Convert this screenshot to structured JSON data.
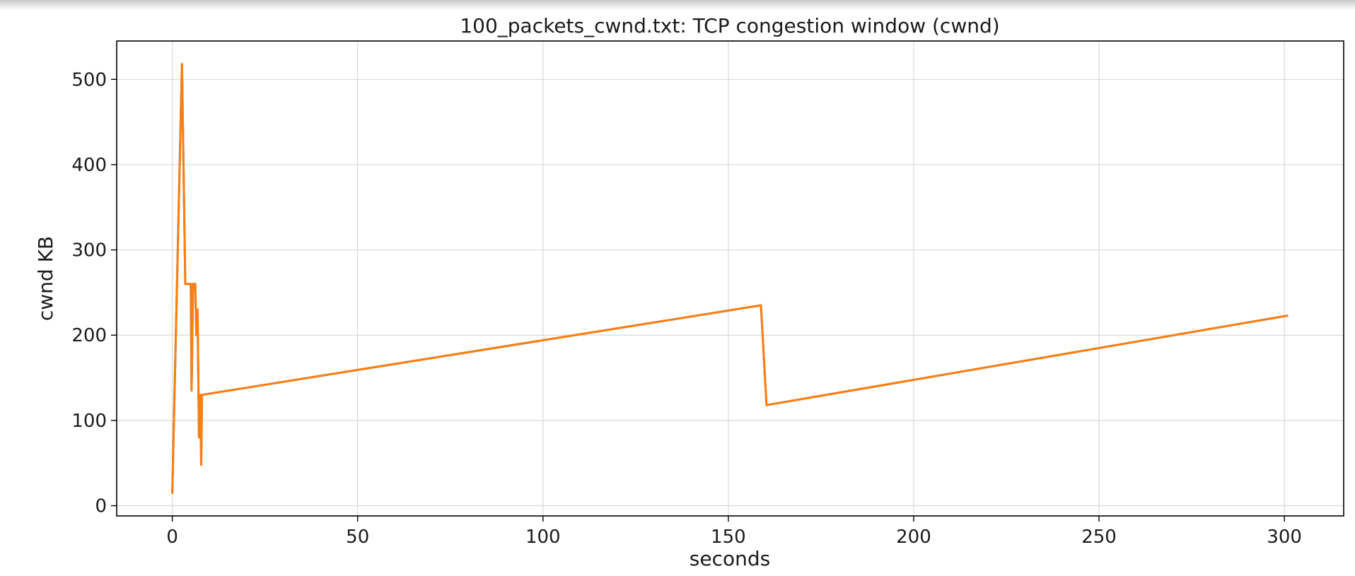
{
  "chart_data": {
    "type": "line",
    "title": "100_packets_cwnd.txt: TCP congestion window (cwnd)",
    "xlabel": "seconds",
    "ylabel": "cwnd KB",
    "xlim": [
      -15,
      316
    ],
    "ylim": [
      -12,
      545
    ],
    "xticks": [
      0,
      50,
      100,
      150,
      200,
      250,
      300
    ],
    "yticks": [
      0,
      100,
      200,
      300,
      400,
      500
    ],
    "grid": true,
    "series": [
      {
        "color": "#1f77b4",
        "points": [
          [
            0,
            14
          ],
          [
            2.6,
            518
          ],
          [
            3.5,
            260
          ],
          [
            5,
            260
          ],
          [
            5.2,
            135
          ],
          [
            5.6,
            260
          ],
          [
            6.2,
            260
          ],
          [
            6.5,
            200
          ],
          [
            6.8,
            230
          ],
          [
            7.2,
            80
          ],
          [
            7.6,
            130
          ],
          [
            7.8,
            48
          ],
          [
            8,
            130
          ],
          [
            158.8,
            235
          ],
          [
            160.3,
            118
          ],
          [
            301,
            223
          ]
        ]
      },
      {
        "color": "#ff7f0e",
        "points": [
          [
            0,
            14
          ],
          [
            2.6,
            518
          ],
          [
            3.5,
            260
          ],
          [
            5,
            260
          ],
          [
            5.2,
            135
          ],
          [
            5.6,
            260
          ],
          [
            6.2,
            260
          ],
          [
            6.5,
            200
          ],
          [
            6.8,
            230
          ],
          [
            7.2,
            80
          ],
          [
            7.6,
            130
          ],
          [
            7.8,
            48
          ],
          [
            8,
            130
          ],
          [
            158.8,
            235
          ],
          [
            160.3,
            118
          ],
          [
            301,
            223
          ]
        ]
      }
    ]
  }
}
